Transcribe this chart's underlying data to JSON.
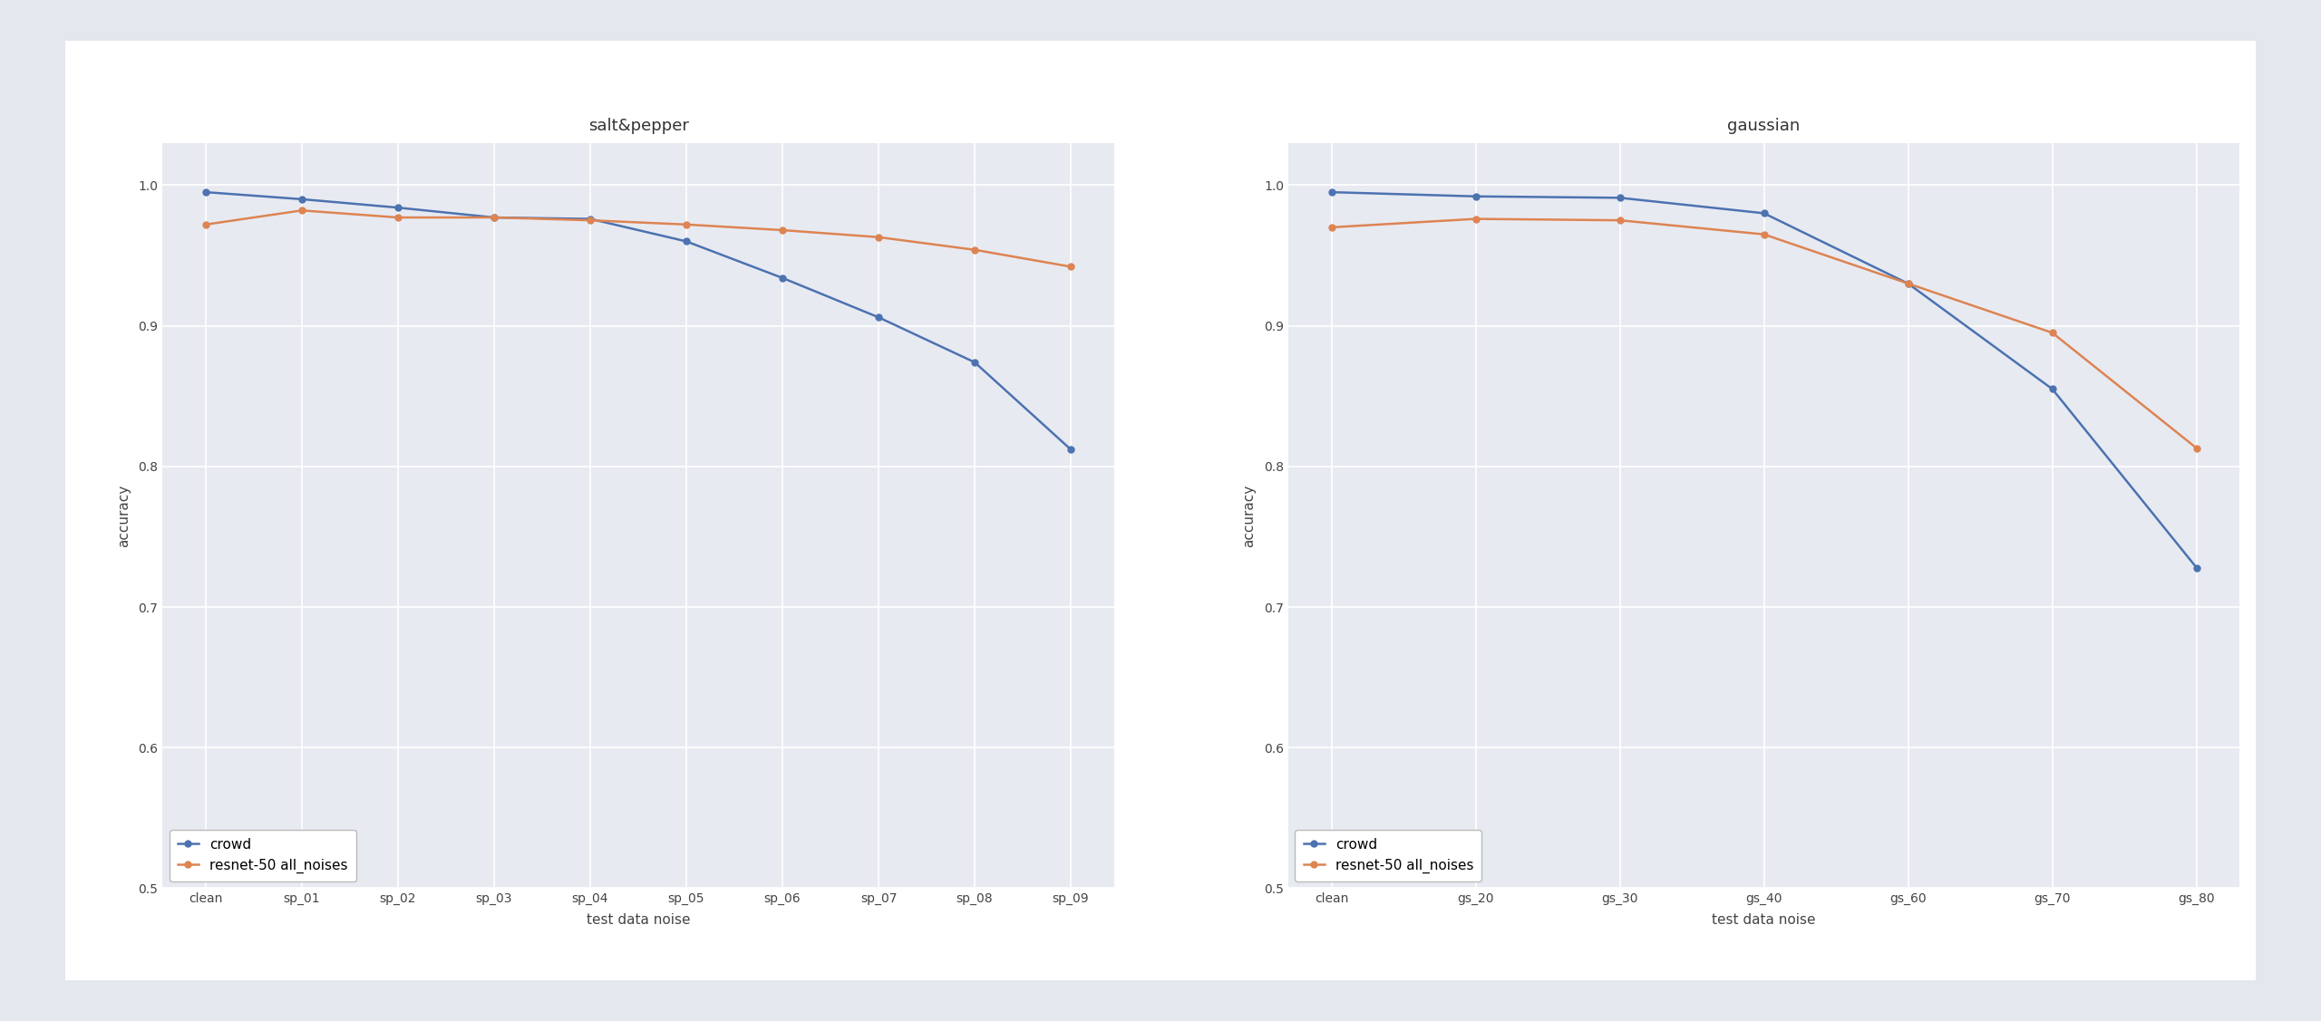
{
  "sp_crowd": [
    0.995,
    0.99,
    0.984,
    0.977,
    0.976,
    0.96,
    0.934,
    0.906,
    0.874,
    0.812
  ],
  "sp_resnet": [
    0.972,
    0.982,
    0.977,
    0.977,
    0.975,
    0.972,
    0.968,
    0.963,
    0.954,
    0.942
  ],
  "sp_labels": [
    "clean",
    "sp_01",
    "sp_02",
    "sp_03",
    "sp_04",
    "sp_05",
    "sp_06",
    "sp_07",
    "sp_08",
    "sp_09"
  ],
  "sp_title": "salt&pepper",
  "gs_crowd": [
    0.995,
    0.992,
    0.991,
    0.98,
    0.93,
    0.855,
    0.728
  ],
  "gs_resnet": [
    0.97,
    0.976,
    0.975,
    0.965,
    0.93,
    0.895,
    0.813
  ],
  "gs_labels": [
    "clean",
    "gs_20",
    "gs_30",
    "gs_40",
    "gs_60",
    "gs_70",
    "gs_80"
  ],
  "gs_title": "gaussian",
  "crowd_color": "#4C72B0",
  "resnet_color": "#DD8452",
  "crowd_label": "crowd",
  "resnet_label": "resnet-50 all_noises",
  "xlabel": "test data noise",
  "ylabel": "accuracy",
  "ylim": [
    0.5,
    1.03
  ],
  "yticks": [
    0.5,
    0.6,
    0.7,
    0.8,
    0.9,
    1.0
  ],
  "outer_bg": "#E4E7ED",
  "plot_bg_color": "#E8EAF2",
  "card_bg": "#FFFFFF",
  "grid_color": "#FFFFFF",
  "marker": "o",
  "markersize": 5,
  "linewidth": 1.8,
  "title_fontsize": 13,
  "label_fontsize": 11,
  "tick_fontsize": 10,
  "legend_fontsize": 11
}
